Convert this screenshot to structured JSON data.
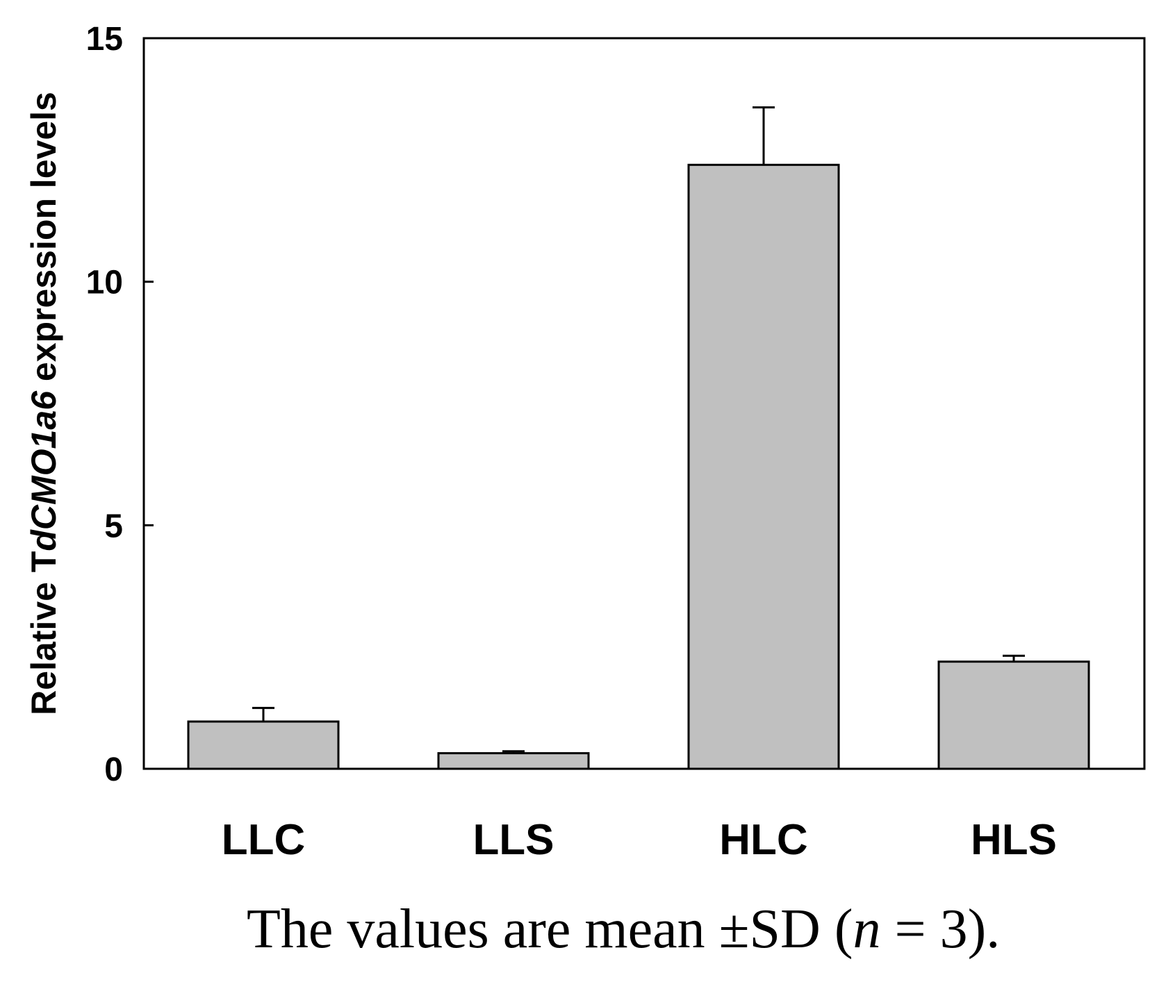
{
  "chart_data": {
    "type": "bar",
    "categories": [
      "LLC",
      "LLS",
      "HLC",
      "HLS"
    ],
    "values": [
      0.97,
      0.32,
      12.4,
      2.2
    ],
    "errors": [
      0.28,
      0.04,
      1.18,
      0.12
    ],
    "ylim": [
      0,
      15
    ],
    "yticks": [
      "0",
      "5",
      "10",
      "15"
    ],
    "ytick_values": [
      0,
      5,
      10,
      15
    ],
    "ylabel_prefix": "Relative T",
    "ylabel_italic": "dCMO1a6",
    "ylabel_suffix": " expression levels",
    "xlabel": "",
    "title": "",
    "bar_color": "#c0c0c0"
  },
  "caption": {
    "prefix": "The values are mean ±SD (",
    "n": "n",
    "suffix": " = 3)."
  }
}
